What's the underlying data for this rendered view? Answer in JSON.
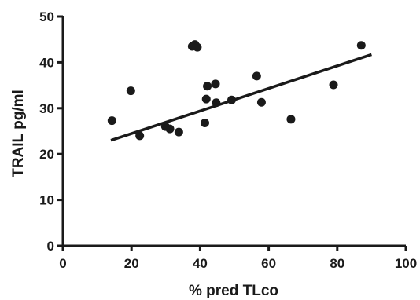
{
  "chart_data": {
    "type": "scatter",
    "xlabel": "% pred TLco",
    "ylabel": "TRAIL pg/ml",
    "xlim": [
      0,
      100
    ],
    "ylim": [
      0,
      50
    ],
    "x_ticks": [
      "0",
      "20",
      "40",
      "60",
      "80",
      "100"
    ],
    "y_ticks": [
      "0",
      "10",
      "20",
      "30",
      "40",
      "50"
    ],
    "grid": false,
    "legend": "none",
    "points": [
      {
        "x": 14.3,
        "y": 27.3
      },
      {
        "x": 19.8,
        "y": 33.8
      },
      {
        "x": 22.4,
        "y": 24.0
      },
      {
        "x": 29.9,
        "y": 26.0
      },
      {
        "x": 31.2,
        "y": 25.5
      },
      {
        "x": 33.8,
        "y": 24.8
      },
      {
        "x": 37.7,
        "y": 43.5
      },
      {
        "x": 38.5,
        "y": 43.9
      },
      {
        "x": 39.2,
        "y": 43.3
      },
      {
        "x": 41.4,
        "y": 26.8
      },
      {
        "x": 41.8,
        "y": 32.0
      },
      {
        "x": 42.1,
        "y": 34.8
      },
      {
        "x": 44.5,
        "y": 35.3
      },
      {
        "x": 44.7,
        "y": 31.2
      },
      {
        "x": 49.2,
        "y": 31.8
      },
      {
        "x": 56.5,
        "y": 37.0
      },
      {
        "x": 57.9,
        "y": 31.3
      },
      {
        "x": 66.5,
        "y": 27.6
      },
      {
        "x": 78.9,
        "y": 35.1
      },
      {
        "x": 87.0,
        "y": 43.7
      }
    ],
    "trendline": {
      "x1": 14,
      "y1": 23.0,
      "x2": 90,
      "y2": 41.7
    },
    "colors": {
      "marker": "#1a1a1a",
      "line": "#1a1a1a",
      "axis": "#1a1a1a"
    }
  }
}
